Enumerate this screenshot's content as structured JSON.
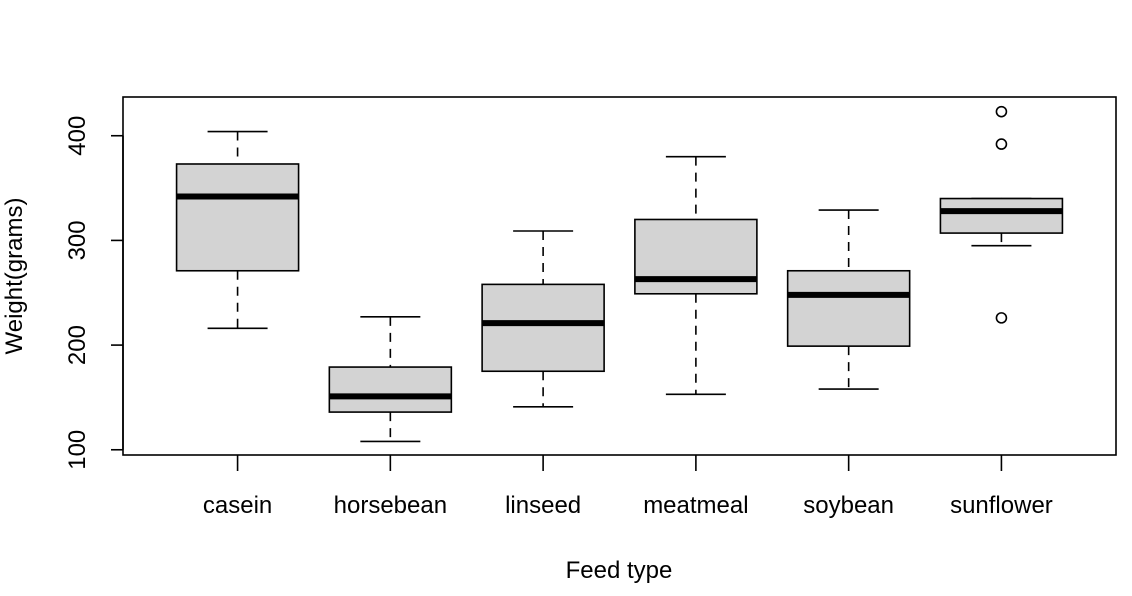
{
  "chart_data": {
    "type": "boxplot",
    "title": "",
    "xlabel": "Feed type",
    "ylabel": "Weight(grams)",
    "ylim": [
      95,
      437
    ],
    "yticks": [
      100,
      200,
      300,
      400
    ],
    "grid": false,
    "box_fill": "#d3d3d3",
    "stroke_color": "#000000",
    "categories": [
      "casein",
      "horsebean",
      "linseed",
      "meatmeal",
      "soybean",
      "sunflower"
    ],
    "series": [
      {
        "category": "casein",
        "min": 216,
        "q1": 271,
        "median": 342,
        "q3": 373,
        "max": 404,
        "outliers": []
      },
      {
        "category": "horsebean",
        "min": 108,
        "q1": 136,
        "median": 151,
        "q3": 179,
        "max": 227,
        "outliers": []
      },
      {
        "category": "linseed",
        "min": 141,
        "q1": 175,
        "median": 221,
        "q3": 258,
        "max": 309,
        "outliers": []
      },
      {
        "category": "meatmeal",
        "min": 153,
        "q1": 249,
        "median": 263,
        "q3": 320,
        "max": 380,
        "outliers": []
      },
      {
        "category": "soybean",
        "min": 158,
        "q1": 199,
        "median": 248,
        "q3": 271,
        "max": 329,
        "outliers": []
      },
      {
        "category": "sunflower",
        "min": 295,
        "q1": 307,
        "median": 328,
        "q3": 340,
        "max": 340,
        "outliers": [
          423,
          392,
          226
        ]
      }
    ]
  }
}
